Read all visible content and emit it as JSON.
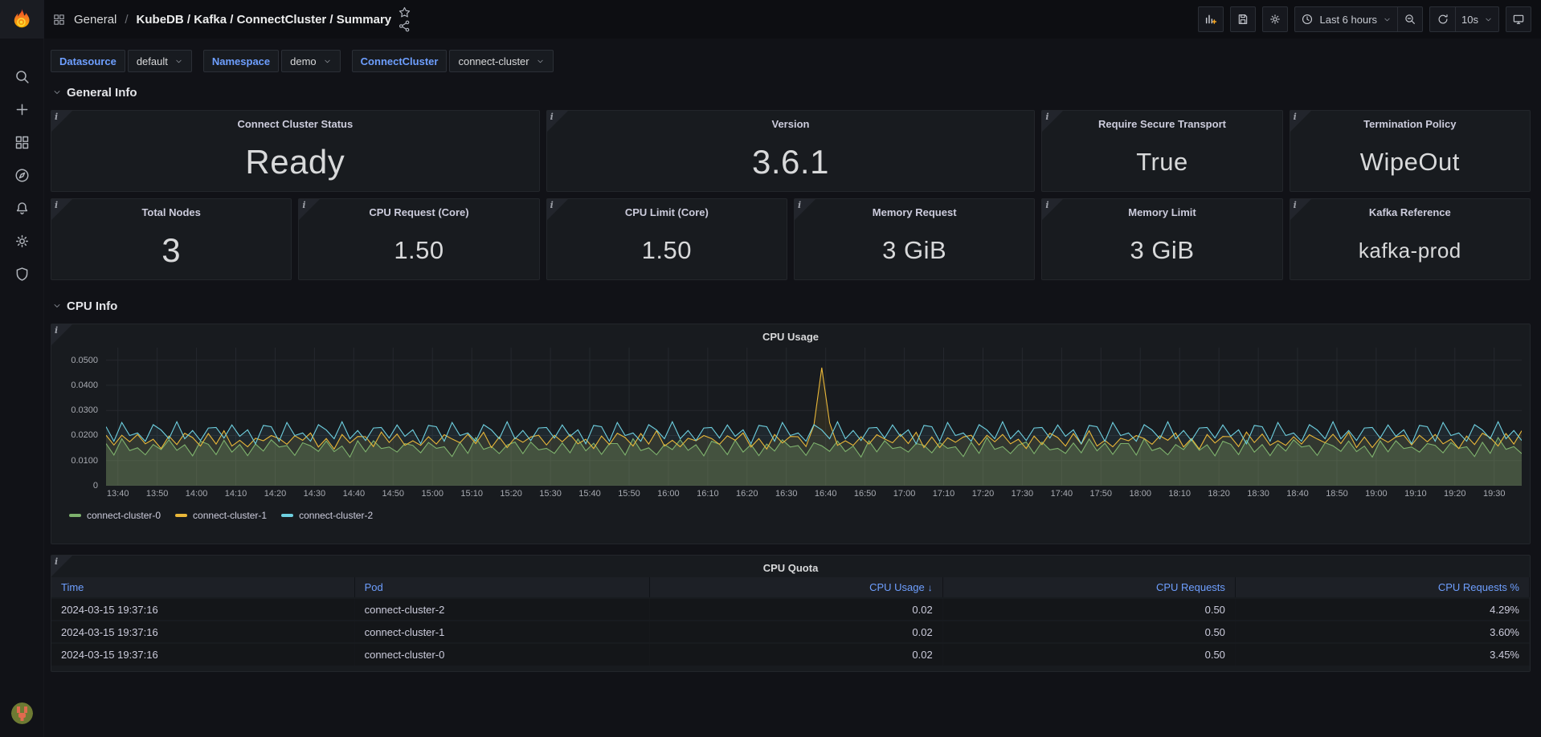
{
  "topbar": {
    "breadcrumb": {
      "section": "General",
      "separator": "/",
      "title": "KubeDB / Kafka / ConnectCluster / Summary"
    },
    "breadcrumb_icon": "apps",
    "action_icons": [
      "star",
      "share-alt"
    ],
    "right_buttons": [
      {
        "kind": "btn",
        "name": "add-panel-button",
        "icon": "panel-add"
      },
      {
        "kind": "btn",
        "name": "save-dashboard-button",
        "icon": "save"
      },
      {
        "kind": "btn",
        "name": "dashboard-settings-button",
        "icon": "gear"
      },
      {
        "kind": "group",
        "items": [
          {
            "name": "time-range-picker",
            "icon": "clock",
            "label": "Last 6 hours",
            "chevron": true
          },
          {
            "name": "zoom-out-button",
            "icon": "zoom-out"
          }
        ]
      },
      {
        "kind": "group",
        "items": [
          {
            "name": "refresh-button",
            "icon": "refresh"
          },
          {
            "name": "refresh-interval-select",
            "label": "10s",
            "chevron": true
          }
        ]
      },
      {
        "kind": "btn",
        "name": "tv-mode-button",
        "icon": "monitor"
      }
    ]
  },
  "sidebar": {
    "items": [
      {
        "name": "search",
        "icon": "search"
      },
      {
        "name": "create",
        "icon": "plus"
      },
      {
        "name": "dashboards",
        "icon": "apps"
      },
      {
        "name": "explore",
        "icon": "compass"
      },
      {
        "name": "alerting",
        "icon": "bell"
      },
      {
        "name": "configuration",
        "icon": "gear"
      },
      {
        "name": "server-admin",
        "icon": "shield"
      }
    ]
  },
  "variables": [
    {
      "label": "Datasource",
      "value": "default"
    },
    {
      "label": "Namespace",
      "value": "demo"
    },
    {
      "label": "ConnectCluster",
      "value": "connect-cluster"
    }
  ],
  "sections": {
    "general_info": "General Info",
    "cpu_info": "CPU Info"
  },
  "stats": [
    {
      "title": "Connect Cluster Status",
      "value": "Ready",
      "span": 2,
      "size": "xl"
    },
    {
      "title": "Version",
      "value": "3.6.1",
      "span": 2,
      "size": "xl"
    },
    {
      "title": "Require Secure Transport",
      "value": "True",
      "span": 1,
      "size": "lg"
    },
    {
      "title": "Termination Policy",
      "value": "WipeOut",
      "span": 1,
      "size": "lg"
    },
    {
      "title": "Total Nodes",
      "value": "3",
      "span": 1,
      "size": "xl"
    },
    {
      "title": "CPU Request (Core)",
      "value": "1.50",
      "span": 1,
      "size": "lg"
    },
    {
      "title": "CPU Limit (Core)",
      "value": "1.50",
      "span": 1,
      "size": "lg"
    },
    {
      "title": "Memory Request",
      "value": "3 GiB",
      "span": 1,
      "size": "lg"
    },
    {
      "title": "Memory Limit",
      "value": "3 GiB",
      "span": 1,
      "size": "lg"
    },
    {
      "title": "Kafka Reference",
      "value": "kafka-prod",
      "span": 1,
      "size": "md"
    }
  ],
  "chart_data": {
    "type": "line",
    "title": "CPU Usage",
    "unit": "cores",
    "value_scale": 0.0001,
    "ylim": [
      0,
      550
    ],
    "grid": true,
    "legend_position": "bottom-left",
    "y_ticks": [
      {
        "v": 0,
        "label": "0"
      },
      {
        "v": 100,
        "label": "0.0100"
      },
      {
        "v": 200,
        "label": "0.0200"
      },
      {
        "v": 300,
        "label": "0.0300"
      },
      {
        "v": 400,
        "label": "0.0400"
      },
      {
        "v": 500,
        "label": "0.0500"
      }
    ],
    "x_start": "13:37",
    "x_end": "19:37",
    "x_step_minutes": 2,
    "x_total_minutes": 360,
    "x_ticks": [
      {
        "m": 3,
        "label": "13:40"
      },
      {
        "m": 13,
        "label": "13:50"
      },
      {
        "m": 23,
        "label": "14:00"
      },
      {
        "m": 33,
        "label": "14:10"
      },
      {
        "m": 43,
        "label": "14:20"
      },
      {
        "m": 53,
        "label": "14:30"
      },
      {
        "m": 63,
        "label": "14:40"
      },
      {
        "m": 73,
        "label": "14:50"
      },
      {
        "m": 83,
        "label": "15:00"
      },
      {
        "m": 93,
        "label": "15:10"
      },
      {
        "m": 103,
        "label": "15:20"
      },
      {
        "m": 113,
        "label": "15:30"
      },
      {
        "m": 123,
        "label": "15:40"
      },
      {
        "m": 133,
        "label": "15:50"
      },
      {
        "m": 143,
        "label": "16:00"
      },
      {
        "m": 153,
        "label": "16:10"
      },
      {
        "m": 163,
        "label": "16:20"
      },
      {
        "m": 173,
        "label": "16:30"
      },
      {
        "m": 183,
        "label": "16:40"
      },
      {
        "m": 193,
        "label": "16:50"
      },
      {
        "m": 203,
        "label": "17:00"
      },
      {
        "m": 213,
        "label": "17:10"
      },
      {
        "m": 223,
        "label": "17:20"
      },
      {
        "m": 233,
        "label": "17:30"
      },
      {
        "m": 243,
        "label": "17:40"
      },
      {
        "m": 253,
        "label": "17:50"
      },
      {
        "m": 263,
        "label": "18:00"
      },
      {
        "m": 273,
        "label": "18:10"
      },
      {
        "m": 283,
        "label": "18:20"
      },
      {
        "m": 293,
        "label": "18:30"
      },
      {
        "m": 303,
        "label": "18:40"
      },
      {
        "m": 313,
        "label": "18:50"
      },
      {
        "m": 323,
        "label": "19:00"
      },
      {
        "m": 333,
        "label": "19:10"
      },
      {
        "m": 343,
        "label": "19:20"
      },
      {
        "m": 353,
        "label": "19:30"
      }
    ],
    "series": [
      {
        "name": "connect-cluster-0",
        "color": "#7eb26d",
        "fill_opacity": 0.22,
        "values": [
          168,
          122,
          187,
          140,
          151,
          123,
          164,
          144,
          183,
          141,
          163,
          119,
          177,
          165,
          124,
          181,
          134,
          164,
          120,
          166,
          138,
          183,
          154,
          160,
          121,
          171,
          159,
          137,
          178,
          136,
          158,
          114,
          179,
          135,
          179,
          148,
          154,
          134,
          168,
          161,
          131,
          172,
          149,
          155,
          116,
          173,
          129,
          192,
          145,
          156,
          128,
          162,
          174,
          128,
          174,
          143,
          149,
          129,
          170,
          131,
          186,
          139,
          169,
          125,
          168,
          168,
          122,
          187,
          140,
          151,
          123,
          164,
          144,
          183,
          141,
          163,
          119,
          177,
          165,
          124,
          181,
          134,
          164,
          120,
          166,
          138,
          183,
          154,
          160,
          121,
          171,
          159,
          137,
          178,
          136,
          158,
          114,
          179,
          135,
          179,
          148,
          154,
          134,
          168,
          161,
          131,
          172,
          149,
          155,
          116,
          173,
          129,
          192,
          145,
          156,
          128,
          162,
          174,
          128,
          174,
          143,
          149,
          129,
          170,
          131,
          186,
          139,
          169,
          125,
          168,
          168,
          122,
          187,
          140,
          151,
          123,
          164,
          144,
          183,
          141,
          163,
          119,
          177,
          165,
          124,
          181,
          134,
          164,
          120,
          166,
          138,
          183,
          154,
          160,
          121,
          171,
          159,
          137,
          178,
          136,
          158,
          114,
          179,
          135,
          179,
          148,
          154,
          134,
          168,
          161,
          131,
          172,
          149,
          155,
          116,
          173,
          129,
          192,
          145,
          156,
          128
        ]
      },
      {
        "name": "connect-cluster-1",
        "color": "#eab839",
        "fill_opacity": 0.1,
        "values": [
          201,
          162,
          201,
          175,
          204,
          167,
          185,
          148,
          198,
          164,
          209,
          192,
          158,
          208,
          166,
          219,
          158,
          181,
          155,
          189,
          179,
          200,
          188,
          165,
          199,
          181,
          210,
          154,
          188,
          146,
          204,
          170,
          196,
          195,
          156,
          214,
          172,
          206,
          161,
          179,
          161,
          195,
          166,
          203,
          186,
          171,
          205,
          168,
          213,
          152,
          194,
          152,
          191,
          173,
          194,
          201,
          162,
          201,
          175,
          204,
          167,
          185,
          148,
          198,
          164,
          209,
          192,
          158,
          208,
          166,
          219,
          158,
          181,
          155,
          189,
          179,
          200,
          188,
          165,
          199,
          181,
          210,
          154,
          188,
          146,
          204,
          170,
          196,
          195,
          156,
          240,
          470,
          250,
          161,
          179,
          161,
          195,
          166,
          203,
          186,
          171,
          205,
          168,
          213,
          152,
          194,
          152,
          191,
          173,
          194,
          201,
          162,
          201,
          175,
          204,
          167,
          185,
          148,
          198,
          164,
          209,
          192,
          158,
          208,
          166,
          219,
          158,
          181,
          155,
          189,
          179,
          200,
          188,
          165,
          199,
          181,
          210,
          154,
          188,
          146,
          204,
          170,
          196,
          195,
          156,
          214,
          172,
          206,
          161,
          179,
          161,
          195,
          166,
          203,
          186,
          171,
          205,
          168,
          213,
          152,
          194,
          152,
          191,
          173,
          194,
          201,
          162,
          201,
          175,
          204,
          167,
          185,
          148,
          198,
          164,
          209,
          192,
          158,
          208,
          166,
          219
        ]
      },
      {
        "name": "connect-cluster-2",
        "color": "#6ed0e0",
        "fill_opacity": 0.08,
        "values": [
          235,
          177,
          252,
          200,
          210,
          177,
          243,
          222,
          187,
          255,
          187,
          220,
          180,
          230,
          232,
          190,
          242,
          197,
          223,
          167,
          240,
          235,
          177,
          252,
          200,
          210,
          177,
          243,
          222,
          187,
          255,
          187,
          220,
          180,
          230,
          232,
          190,
          242,
          197,
          223,
          167,
          240,
          235,
          177,
          252,
          200,
          210,
          177,
          243,
          222,
          187,
          255,
          187,
          220,
          180,
          230,
          232,
          190,
          242,
          197,
          223,
          167,
          240,
          235,
          177,
          252,
          200,
          210,
          177,
          243,
          222,
          187,
          255,
          187,
          220,
          180,
          230,
          232,
          190,
          242,
          197,
          223,
          167,
          240,
          235,
          177,
          252,
          200,
          210,
          177,
          243,
          222,
          187,
          255,
          187,
          220,
          180,
          230,
          232,
          190,
          242,
          197,
          223,
          167,
          240,
          235,
          177,
          252,
          200,
          210,
          177,
          243,
          222,
          187,
          255,
          187,
          220,
          180,
          230,
          232,
          190,
          242,
          197,
          223,
          167,
          240,
          235,
          177,
          252,
          200,
          210,
          177,
          243,
          222,
          187,
          255,
          187,
          220,
          180,
          230,
          232,
          190,
          242,
          197,
          223,
          167,
          240,
          235,
          177,
          252,
          200,
          210,
          177,
          243,
          222,
          187,
          255,
          187,
          220,
          180,
          230,
          232,
          190,
          242,
          197,
          223,
          167,
          240,
          235,
          177,
          252,
          200,
          210,
          177,
          243,
          222,
          187,
          255,
          187,
          220,
          180
        ]
      }
    ]
  },
  "table": {
    "title": "CPU Quota",
    "columns": [
      {
        "label": "Time",
        "align": "left"
      },
      {
        "label": "Pod",
        "align": "left"
      },
      {
        "label": "CPU Usage",
        "align": "right",
        "sorted": "desc"
      },
      {
        "label": "CPU Requests",
        "align": "right"
      },
      {
        "label": "CPU Requests %",
        "align": "right"
      }
    ],
    "rows": [
      [
        "2024-03-15 19:37:16",
        "connect-cluster-2",
        "0.02",
        "0.50",
        "4.29%"
      ],
      [
        "2024-03-15 19:37:16",
        "connect-cluster-1",
        "0.02",
        "0.50",
        "3.60%"
      ],
      [
        "2024-03-15 19:37:16",
        "connect-cluster-0",
        "0.02",
        "0.50",
        "3.45%"
      ]
    ]
  }
}
